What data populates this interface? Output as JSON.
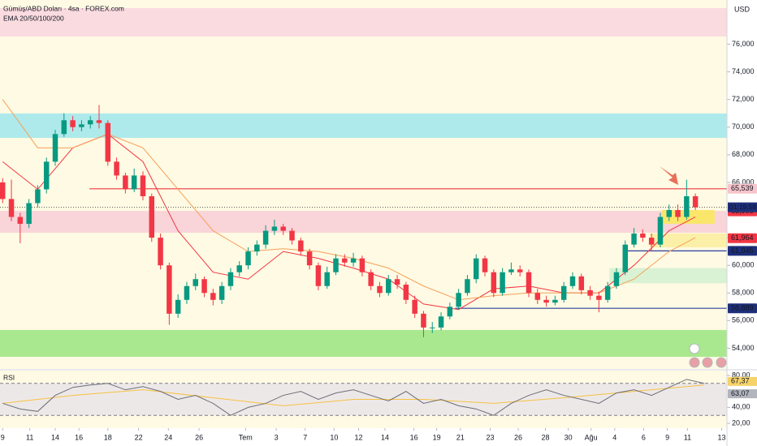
{
  "chart_data": {
    "type": "candlestick",
    "title": "Gümüş/ABD Doları · 4sa · FOREX.com",
    "subtitle": "EMA 20/50/100/200",
    "currency": "USD",
    "xlim": [
      -0.3,
      82.6
    ],
    "ylim": [
      52500,
      79200
    ],
    "yticks": [
      {
        "value": 54000,
        "label": "54,000"
      },
      {
        "value": 56000,
        "label": "56,000"
      },
      {
        "value": 58000,
        "label": "58,000"
      },
      {
        "value": 60000,
        "label": "60,000"
      },
      {
        "value": 62000,
        "label": "62,000"
      },
      {
        "value": 64000,
        "label": "64,000"
      },
      {
        "value": 66000,
        "label": "66,000"
      },
      {
        "value": 68000,
        "label": "68,000"
      },
      {
        "value": 70000,
        "label": "70,000"
      },
      {
        "value": 72000,
        "label": "72,000"
      },
      {
        "value": 74000,
        "label": "74,000"
      },
      {
        "value": 76000,
        "label": "76,000"
      }
    ],
    "xticks": [
      {
        "value": 0,
        "label": "9"
      },
      {
        "value": 3.1,
        "label": "11"
      },
      {
        "value": 6.0,
        "label": "14"
      },
      {
        "value": 8.7,
        "label": "16"
      },
      {
        "value": 12.0,
        "label": "18"
      },
      {
        "value": 15.5,
        "label": "22"
      },
      {
        "value": 18.9,
        "label": "24"
      },
      {
        "value": 22.4,
        "label": "26"
      },
      {
        "value": 27.7,
        "label": "Tem"
      },
      {
        "value": 31.2,
        "label": "3"
      },
      {
        "value": 34.5,
        "label": "7"
      },
      {
        "value": 37.8,
        "label": "10"
      },
      {
        "value": 40.6,
        "label": "12"
      },
      {
        "value": 43.6,
        "label": "14"
      },
      {
        "value": 46.9,
        "label": "16"
      },
      {
        "value": 49.5,
        "label": "19"
      },
      {
        "value": 52.2,
        "label": "21"
      },
      {
        "value": 55.6,
        "label": "23"
      },
      {
        "value": 58.8,
        "label": "26"
      },
      {
        "value": 61.9,
        "label": "28"
      },
      {
        "value": 64.5,
        "label": "30"
      },
      {
        "value": 67.1,
        "label": "Ağu"
      },
      {
        "value": 69.8,
        "label": "4"
      },
      {
        "value": 73.1,
        "label": "6"
      },
      {
        "value": 75.8,
        "label": "9"
      },
      {
        "value": 78.1,
        "label": "11"
      },
      {
        "value": 82.0,
        "label": "13"
      }
    ],
    "up_color": "#089981",
    "down_color": "#f23645",
    "x": [
      0,
      1,
      2,
      3,
      4,
      5,
      6,
      7,
      8,
      9,
      10,
      11,
      12,
      13,
      14,
      15,
      16,
      17,
      18,
      19,
      20,
      21,
      22,
      23,
      24,
      25,
      26,
      27,
      28,
      29,
      30,
      31,
      32,
      33,
      34,
      35,
      36,
      37,
      38,
      39,
      40,
      41,
      42,
      43,
      44,
      45,
      46,
      47,
      48,
      49,
      50,
      51,
      52,
      53,
      54,
      55,
      56,
      57,
      58,
      59,
      60,
      61,
      62,
      63,
      64,
      65,
      66,
      67,
      68,
      69,
      70,
      71,
      72,
      73,
      74,
      75,
      76,
      77,
      78,
      79
    ],
    "open": [
      66000,
      64800,
      63500,
      63000,
      64500,
      65500,
      67500,
      69500,
      70500,
      70000,
      70200,
      70500,
      70300,
      67500,
      66500,
      65500,
      66500,
      65000,
      62000,
      60000,
      56500,
      57500,
      58500,
      59000,
      58000,
      57500,
      58500,
      59500,
      60000,
      61000,
      61500,
      62500,
      62800,
      62500,
      61800,
      61000,
      60000,
      58500,
      59500,
      60500,
      60200,
      60500,
      59500,
      58500,
      58000,
      59000,
      58600,
      57500,
      56500,
      55500,
      55500,
      56300,
      57000,
      58000,
      59000,
      60500,
      59500,
      58000,
      59500,
      59700,
      59500,
      58000,
      57500,
      57300,
      57500,
      58500,
      59200,
      58200,
      57800,
      57500,
      58500,
      59500,
      61500,
      62300,
      62000,
      61500,
      63500,
      64000,
      63500,
      65000
    ],
    "high": [
      66300,
      66200,
      63800,
      64800,
      65800,
      67800,
      69800,
      71000,
      70800,
      70500,
      70800,
      71600,
      70500,
      67800,
      66700,
      67000,
      66800,
      65200,
      62300,
      60200,
      57900,
      58800,
      59400,
      59200,
      58300,
      58800,
      59800,
      60300,
      61300,
      61800,
      62900,
      63300,
      63000,
      62700,
      62000,
      61200,
      60200,
      59900,
      60800,
      60800,
      60900,
      60700,
      59700,
      58800,
      59300,
      59300,
      58800,
      57800,
      56700,
      55900,
      56600,
      57300,
      58300,
      59300,
      60800,
      60700,
      59700,
      59800,
      60200,
      60000,
      59700,
      58300,
      57800,
      57800,
      58800,
      59500,
      59400,
      58500,
      58100,
      58800,
      59800,
      61800,
      62700,
      62600,
      62300,
      63800,
      64400,
      64400,
      66200,
      65200
    ],
    "low": [
      64500,
      63200,
      61600,
      62700,
      64200,
      65200,
      67200,
      69300,
      69700,
      69700,
      69900,
      69900,
      67200,
      66200,
      65200,
      65300,
      64700,
      61700,
      59700,
      55700,
      56200,
      57200,
      58200,
      57700,
      57100,
      57200,
      58200,
      59200,
      59700,
      60700,
      61200,
      62200,
      62200,
      61500,
      60700,
      59700,
      58200,
      58300,
      59300,
      59900,
      59900,
      59200,
      58200,
      57700,
      57800,
      58300,
      57200,
      56200,
      54800,
      55100,
      55300,
      56100,
      56800,
      57800,
      58700,
      59200,
      57700,
      57800,
      59300,
      59200,
      57700,
      57200,
      57000,
      57100,
      57300,
      58300,
      57900,
      57500,
      56600,
      57300,
      58300,
      59300,
      61300,
      61700,
      61000,
      61300,
      63200,
      63200,
      63300,
      64000
    ],
    "close": [
      64800,
      63500,
      63000,
      64500,
      65500,
      67500,
      69500,
      70500,
      70000,
      70200,
      70500,
      70300,
      67500,
      66500,
      65500,
      66500,
      65000,
      62000,
      60000,
      56500,
      57500,
      58500,
      59000,
      58000,
      57500,
      58500,
      59500,
      60000,
      61000,
      61500,
      62500,
      62800,
      62500,
      61800,
      61000,
      60000,
      58500,
      59500,
      60500,
      60200,
      60500,
      59500,
      58500,
      58000,
      59000,
      58600,
      57500,
      56500,
      55500,
      55500,
      56300,
      57000,
      58000,
      59000,
      60500,
      59500,
      58000,
      59500,
      59700,
      59500,
      58000,
      57500,
      57300,
      57500,
      58500,
      59200,
      58200,
      57800,
      57500,
      58500,
      59500,
      61500,
      62300,
      62000,
      61500,
      63500,
      64000,
      63500,
      65000,
      64200
    ],
    "ema": [
      {
        "color": "#f23645",
        "x": [
          0,
          4,
          8,
          12,
          16,
          20,
          24,
          28,
          32,
          36,
          40,
          44,
          48,
          52,
          56,
          60,
          64,
          68,
          72,
          76,
          79
        ],
        "values": [
          67500,
          65500,
          68500,
          69500,
          67500,
          62500,
          59500,
          59000,
          61000,
          60500,
          59800,
          59000,
          57200,
          56800,
          58300,
          58500,
          58000,
          58000,
          60000,
          62500,
          63500
        ]
      },
      {
        "color": "#f5a05a",
        "x": [
          0,
          4,
          8,
          12,
          16,
          20,
          24,
          28,
          32,
          36,
          40,
          44,
          48,
          52,
          56,
          60,
          64,
          68,
          72,
          76,
          79
        ],
        "values": [
          72000,
          68500,
          68500,
          69500,
          68500,
          65500,
          62500,
          61000,
          61200,
          61000,
          60500,
          59800,
          58500,
          57500,
          57800,
          58000,
          58000,
          58000,
          59000,
          61000,
          62000
        ]
      }
    ],
    "zones": [
      {
        "low": 76560,
        "high": 78610,
        "color": "#fadbe0"
      },
      {
        "low": 69220,
        "high": 70990,
        "color": "#aeeaec"
      },
      {
        "low": 62360,
        "high": 63940,
        "color": "#f9d4d9"
      },
      {
        "low": 53380,
        "high": 55320,
        "color": "#a9e88f"
      }
    ],
    "boxes": [
      {
        "low": 63000,
        "high": 64000,
        "x0": 75.2,
        "x1": 81.2,
        "color": "#fbe66c"
      },
      {
        "low": 61300,
        "high": 62300,
        "x0": 73.8,
        "x1": 82.6,
        "color": "#fcf0a8"
      },
      {
        "low": 58700,
        "high": 59800,
        "x0": 69.2,
        "x1": 82.6,
        "color": "#d9f2d3"
      }
    ],
    "levels": [
      {
        "value": 65539,
        "x0": 9.9,
        "color": "#f23645"
      },
      {
        "value": 61045,
        "x0": 71.2,
        "color": "#2a3f9e"
      },
      {
        "value": 56889,
        "x0": 51.6,
        "color": "#2a3f9e"
      }
    ],
    "price_labels": [
      {
        "value": 65539,
        "label": "65,539",
        "color": "#f7c5cb",
        "text": "#a8232f"
      },
      {
        "value": 63906,
        "label": "63,906",
        "color": "#f23645",
        "text": "#ffffff"
      },
      {
        "value": 61964,
        "label": "61,964",
        "color": "#f23645",
        "text": "#ffffff"
      },
      {
        "value": 61045,
        "label": "61,045",
        "color": "#1e2f7a",
        "text": "#ffffff"
      },
      {
        "value": 56889,
        "label": "56,889",
        "color": "#1e2f7a",
        "text": "#ffffff"
      }
    ],
    "countdown": "01:19:58",
    "rsi": {
      "title": "RSI",
      "ylim": [
        14,
        86
      ],
      "yticks": [
        {
          "value": 20,
          "label": "20,00"
        },
        {
          "value": 40,
          "label": "40,00"
        },
        {
          "value": 80,
          "label": "80,00"
        }
      ],
      "levels": [
        30,
        70
      ],
      "x": [
        0,
        2,
        4,
        6,
        8,
        10,
        12,
        14,
        16,
        18,
        20,
        22,
        24,
        26,
        28,
        30,
        32,
        34,
        36,
        38,
        40,
        42,
        44,
        46,
        48,
        50,
        52,
        54,
        56,
        58,
        60,
        62,
        64,
        66,
        68,
        70,
        72,
        74,
        76,
        78,
        80
      ],
      "values": [
        45,
        38,
        35,
        55,
        65,
        68,
        70,
        62,
        66,
        60,
        50,
        55,
        45,
        30,
        40,
        45,
        55,
        60,
        50,
        58,
        62,
        55,
        48,
        60,
        45,
        50,
        42,
        38,
        30,
        45,
        55,
        62,
        55,
        50,
        45,
        58,
        62,
        55,
        65,
        75,
        70
      ],
      "ma_x": [
        0,
        8,
        16,
        24,
        32,
        40,
        48,
        56,
        64,
        72,
        80
      ],
      "ma_values": [
        45,
        55,
        62,
        52,
        42,
        50,
        50,
        45,
        52,
        60,
        68
      ],
      "labels": [
        {
          "value": 67.37,
          "label": "67,37",
          "color": "#f5d36a"
        },
        {
          "value": 63.07,
          "label": "63,07",
          "color": "#b2b5be"
        }
      ]
    }
  }
}
